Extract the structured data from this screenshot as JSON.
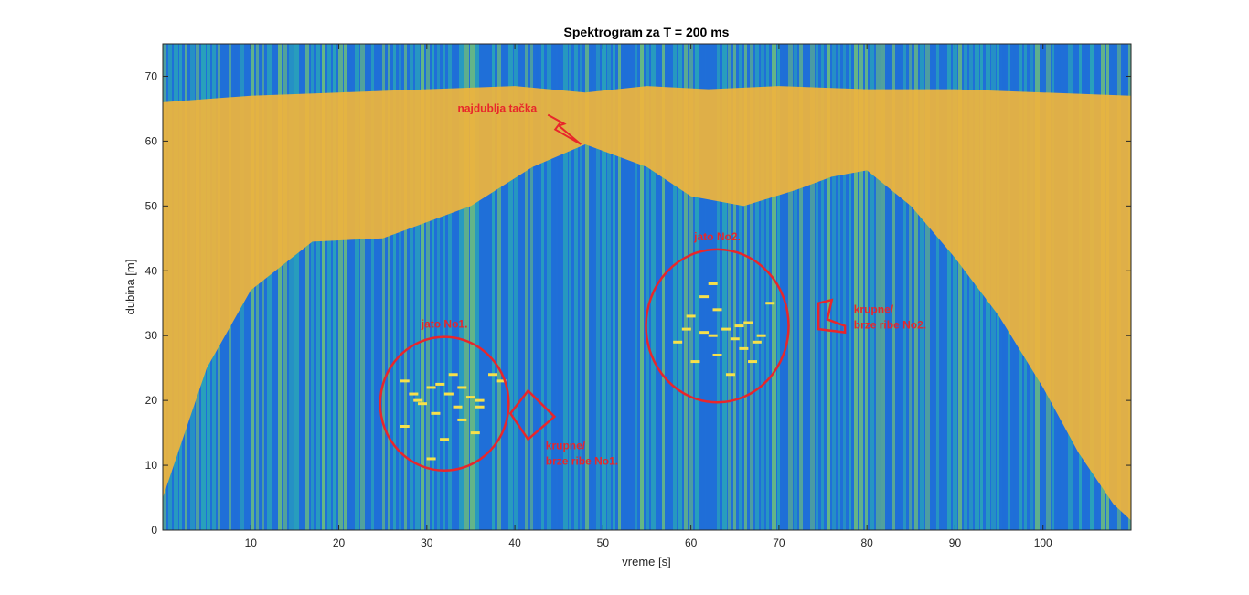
{
  "chart_data": {
    "type": "heatmap",
    "title": "Spektrogram za T = 200 ms",
    "xlabel": "vreme [s]",
    "ylabel": "dubina [m]",
    "xlim": [
      0,
      110
    ],
    "ylim": [
      0,
      75
    ],
    "xticks": [
      10,
      20,
      30,
      40,
      50,
      60,
      70,
      80,
      90,
      100
    ],
    "yticks": [
      0,
      10,
      20,
      30,
      40,
      50,
      60,
      70
    ],
    "colors": {
      "deep_blue": "#1f6fd8",
      "teal": "#2aa6b8",
      "green": "#6fc07a",
      "orange": "#f0b43c",
      "annotation": "#e8262b"
    },
    "seabed_profile": {
      "x": [
        0,
        5,
        10,
        17,
        25,
        35,
        42,
        48,
        55,
        60,
        66,
        72,
        76,
        80,
        85,
        90,
        95,
        100,
        104,
        108,
        110
      ],
      "y": [
        5,
        25,
        37,
        44.5,
        45,
        50,
        56,
        59.5,
        56,
        51.5,
        50,
        52.5,
        54.5,
        55.5,
        50,
        42,
        33,
        22,
        12,
        4,
        1.5
      ]
    },
    "upper_band": {
      "x": [
        0,
        10,
        20,
        30,
        40,
        48,
        55,
        62,
        70,
        80,
        90,
        100,
        110
      ],
      "y": [
        66,
        67,
        67.5,
        68,
        68.5,
        67.5,
        68.5,
        68,
        68.5,
        68,
        68,
        67.5,
        67
      ]
    },
    "schools": [
      {
        "label": "jato No1.",
        "center": [
          32,
          19.5
        ],
        "radius": [
          7.3,
          10.3
        ],
        "marks": [
          [
            27.5,
            23
          ],
          [
            28.5,
            21
          ],
          [
            30.5,
            22
          ],
          [
            29.5,
            19.5
          ],
          [
            32.5,
            21
          ],
          [
            34,
            22
          ],
          [
            33,
            24
          ],
          [
            35,
            20.5
          ],
          [
            31,
            18
          ],
          [
            36,
            20
          ],
          [
            37.5,
            24
          ],
          [
            38.5,
            23
          ],
          [
            27.5,
            16
          ],
          [
            30.5,
            11
          ],
          [
            34,
            17
          ],
          [
            36,
            19
          ],
          [
            29,
            20
          ],
          [
            31.5,
            22.5
          ],
          [
            33.5,
            19
          ],
          [
            35.5,
            15
          ],
          [
            32,
            14
          ]
        ]
      },
      {
        "label": "jato No2.",
        "center": [
          63,
          31.5
        ],
        "radius": [
          8.1,
          11.8
        ],
        "marks": [
          [
            58.5,
            29
          ],
          [
            60,
            33
          ],
          [
            61.5,
            30.5
          ],
          [
            62.5,
            38
          ],
          [
            63,
            34
          ],
          [
            64,
            31
          ],
          [
            65,
            29.5
          ],
          [
            66,
            28
          ],
          [
            66.5,
            32
          ],
          [
            67.5,
            29
          ],
          [
            69,
            35
          ],
          [
            60.5,
            26
          ],
          [
            63,
            27
          ],
          [
            64.5,
            24
          ],
          [
            68,
            30
          ],
          [
            61.5,
            36
          ],
          [
            65.5,
            31.5
          ],
          [
            62.5,
            30
          ],
          [
            67,
            26
          ],
          [
            59.5,
            31
          ]
        ]
      }
    ],
    "annotations": [
      {
        "id": "deepest",
        "text": "najdublja tačka",
        "x": 33.5,
        "y": 64.5
      },
      {
        "id": "school1",
        "text": "jato No1."
      },
      {
        "id": "school2",
        "text": "jato No2."
      },
      {
        "id": "fish1",
        "text_lines": [
          "krupne/",
          "brze ribe No1."
        ],
        "x": 43.5,
        "y": 12.5
      },
      {
        "id": "fish2",
        "text_lines": [
          "krupne/",
          "brze ribe No2."
        ],
        "x": 78.5,
        "y": 33.5
      }
    ],
    "diamond_fish1": [
      [
        41.5,
        21.5
      ],
      [
        44.5,
        17.5
      ],
      [
        41.5,
        14
      ],
      [
        39.5,
        18
      ]
    ],
    "marker_fish2": [
      [
        74.5,
        35
      ],
      [
        76,
        35.5
      ],
      [
        75.5,
        32.5
      ],
      [
        77.5,
        31.5
      ],
      [
        77.5,
        30.5
      ],
      [
        74.5,
        31
      ]
    ],
    "lightning": {
      "x": [
        45,
        47.5
      ],
      "y": [
        63.5,
        59.5
      ]
    }
  }
}
